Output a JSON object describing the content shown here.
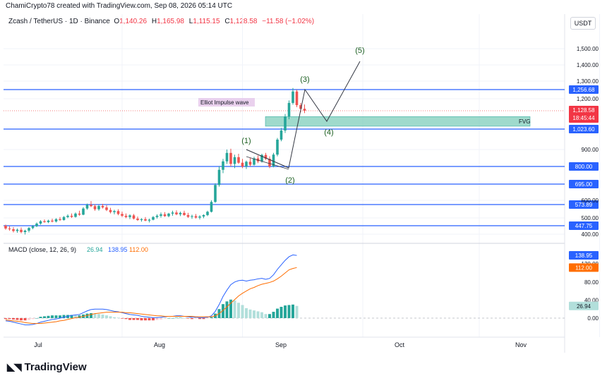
{
  "header": {
    "credit": "ChamiCrypto78 created with TradingView.com, Sep 08, 2026 05:14 UTC",
    "symbol": "Zcash / TetherUS · 1D · Binance",
    "open_label": "O",
    "open": "1,140.26",
    "high_label": "H",
    "high": "1,165.98",
    "low_label": "L",
    "low": "1,115.15",
    "close_label": "C",
    "close": "1,128.58",
    "change": "−11.58 (−1.02%)",
    "currency": "USDT"
  },
  "brand": {
    "name": "TradingView",
    "logo_icon": "tradingview-logo-icon"
  },
  "colors": {
    "up": "#26a69a",
    "down": "#ef5350",
    "level": "#2962ff",
    "fvg": "#7fcdbb",
    "macd": "#2962ff",
    "signal": "#ff6d00",
    "hist_up_strong": "#26a69a",
    "hist_up_weak": "#b2dfdb",
    "hist_down_strong": "#ef5350",
    "hist_down_weak": "#ffcdd2"
  },
  "chart_data": {
    "type": "candlestick",
    "price_axis": {
      "ticks": [
        400,
        500,
        600,
        900,
        1200,
        1300,
        1400,
        1500
      ],
      "tick_labels": [
        "400.00",
        "500.00",
        "600.00",
        "900.00",
        "1,200.00",
        "1,300.00",
        "1,400.00",
        "1,500.00"
      ]
    },
    "time_axis": {
      "labels": [
        "Jul",
        "Aug",
        "Sep",
        "Oct",
        "Nov"
      ],
      "dates": [
        "2026-07-01",
        "2026-08-01",
        "2026-09-01",
        "2026-10-01",
        "2026-11-01"
      ]
    },
    "horizontal_levels": [
      {
        "value": 1256.68,
        "label": "1,256.68"
      },
      {
        "value": 1023.6,
        "label": "1,023.60"
      },
      {
        "value": 800,
        "label": "800.00"
      },
      {
        "value": 695,
        "label": "695.00"
      },
      {
        "value": 573.89,
        "label": "573.89"
      },
      {
        "value": 447.75,
        "label": "447.75"
      }
    ],
    "last_price": {
      "value": 1128.58,
      "label": "1,128.58",
      "countdown": "18:45:44"
    },
    "fvg_zone": {
      "label": "FVG",
      "top": 1095,
      "bottom": 1040,
      "start": "2026-08-25",
      "end": "2026-10-31"
    },
    "annotation_text": "Elliot Impulse wave",
    "wave_labels": [
      {
        "label": "(1)",
        "date": "2026-08-21",
        "price": 915
      },
      {
        "label": "(2)",
        "date": "2026-08-31",
        "price": 780
      },
      {
        "label": "(3)",
        "date": "2026-09-06",
        "price": 1256
      },
      {
        "label": "(4)",
        "date": "2026-09-10",
        "price": 1070
      },
      {
        "label": "(5)",
        "date": "2026-09-19",
        "price": 1420
      }
    ],
    "wave_path": [
      {
        "date": "2026-08-21",
        "price": 900
      },
      {
        "date": "2026-08-31",
        "price": 790
      },
      {
        "date": "2026-09-06",
        "price": 1256
      },
      {
        "date": "2026-09-10",
        "price": 1070
      },
      {
        "date": "2026-09-19",
        "price": 1420
      }
    ],
    "candles": [
      {
        "d": "2026-06-01",
        "o": 448,
        "h": 455,
        "l": 425,
        "c": 432
      },
      {
        "d": "2026-06-02",
        "o": 432,
        "h": 445,
        "l": 420,
        "c": 428
      },
      {
        "d": "2026-06-03",
        "o": 428,
        "h": 440,
        "l": 410,
        "c": 418
      },
      {
        "d": "2026-06-04",
        "o": 418,
        "h": 432,
        "l": 408,
        "c": 425
      },
      {
        "d": "2026-06-05",
        "o": 425,
        "h": 438,
        "l": 405,
        "c": 412
      },
      {
        "d": "2026-06-06",
        "o": 412,
        "h": 425,
        "l": 398,
        "c": 420
      },
      {
        "d": "2026-06-07",
        "o": 420,
        "h": 440,
        "l": 410,
        "c": 435
      },
      {
        "d": "2026-06-08",
        "o": 435,
        "h": 452,
        "l": 428,
        "c": 445
      },
      {
        "d": "2026-06-09",
        "o": 445,
        "h": 470,
        "l": 440,
        "c": 462
      },
      {
        "d": "2026-06-10",
        "o": 462,
        "h": 485,
        "l": 455,
        "c": 478
      },
      {
        "d": "2026-06-11",
        "o": 478,
        "h": 490,
        "l": 468,
        "c": 472
      },
      {
        "d": "2026-06-12",
        "o": 472,
        "h": 488,
        "l": 465,
        "c": 482
      },
      {
        "d": "2026-06-13",
        "o": 482,
        "h": 495,
        "l": 470,
        "c": 476
      },
      {
        "d": "2026-06-14",
        "o": 476,
        "h": 498,
        "l": 470,
        "c": 492
      },
      {
        "d": "2026-06-15",
        "o": 492,
        "h": 505,
        "l": 480,
        "c": 486
      },
      {
        "d": "2026-06-16",
        "o": 486,
        "h": 510,
        "l": 482,
        "c": 505
      },
      {
        "d": "2026-06-17",
        "o": 505,
        "h": 520,
        "l": 498,
        "c": 512
      },
      {
        "d": "2026-06-18",
        "o": 512,
        "h": 525,
        "l": 500,
        "c": 506
      },
      {
        "d": "2026-06-19",
        "o": 506,
        "h": 530,
        "l": 502,
        "c": 524
      },
      {
        "d": "2026-06-20",
        "o": 524,
        "h": 540,
        "l": 512,
        "c": 518
      },
      {
        "d": "2026-06-21",
        "o": 518,
        "h": 560,
        "l": 515,
        "c": 552
      },
      {
        "d": "2026-06-22",
        "o": 552,
        "h": 580,
        "l": 545,
        "c": 572
      },
      {
        "d": "2026-06-23",
        "o": 572,
        "h": 595,
        "l": 560,
        "c": 565
      },
      {
        "d": "2026-06-24",
        "o": 565,
        "h": 575,
        "l": 540,
        "c": 548
      },
      {
        "d": "2026-06-25",
        "o": 548,
        "h": 572,
        "l": 540,
        "c": 566
      },
      {
        "d": "2026-06-26",
        "o": 566,
        "h": 578,
        "l": 552,
        "c": 558
      },
      {
        "d": "2026-06-27",
        "o": 558,
        "h": 570,
        "l": 538,
        "c": 544
      },
      {
        "d": "2026-06-28",
        "o": 544,
        "h": 556,
        "l": 525,
        "c": 532
      },
      {
        "d": "2026-06-29",
        "o": 532,
        "h": 545,
        "l": 520,
        "c": 538
      },
      {
        "d": "2026-06-30",
        "o": 538,
        "h": 548,
        "l": 515,
        "c": 522
      },
      {
        "d": "2026-07-01",
        "o": 522,
        "h": 535,
        "l": 505,
        "c": 512
      },
      {
        "d": "2026-07-02",
        "o": 512,
        "h": 525,
        "l": 498,
        "c": 505
      },
      {
        "d": "2026-07-03",
        "o": 505,
        "h": 520,
        "l": 492,
        "c": 514
      },
      {
        "d": "2026-07-04",
        "o": 514,
        "h": 522,
        "l": 490,
        "c": 496
      },
      {
        "d": "2026-07-05",
        "o": 496,
        "h": 508,
        "l": 480,
        "c": 486
      },
      {
        "d": "2026-07-06",
        "o": 486,
        "h": 498,
        "l": 475,
        "c": 492
      },
      {
        "d": "2026-07-07",
        "o": 492,
        "h": 505,
        "l": 478,
        "c": 482
      },
      {
        "d": "2026-07-08",
        "o": 482,
        "h": 495,
        "l": 470,
        "c": 488
      },
      {
        "d": "2026-07-09",
        "o": 488,
        "h": 510,
        "l": 484,
        "c": 505
      },
      {
        "d": "2026-07-10",
        "o": 505,
        "h": 520,
        "l": 496,
        "c": 512
      },
      {
        "d": "2026-07-11",
        "o": 512,
        "h": 530,
        "l": 502,
        "c": 520
      },
      {
        "d": "2026-07-12",
        "o": 520,
        "h": 532,
        "l": 506,
        "c": 510
      },
      {
        "d": "2026-07-13",
        "o": 510,
        "h": 528,
        "l": 504,
        "c": 524
      },
      {
        "d": "2026-07-14",
        "o": 524,
        "h": 540,
        "l": 512,
        "c": 530
      },
      {
        "d": "2026-07-15",
        "o": 530,
        "h": 542,
        "l": 515,
        "c": 520
      },
      {
        "d": "2026-07-16",
        "o": 520,
        "h": 535,
        "l": 510,
        "c": 528
      },
      {
        "d": "2026-07-17",
        "o": 528,
        "h": 540,
        "l": 512,
        "c": 516
      },
      {
        "d": "2026-07-18",
        "o": 516,
        "h": 528,
        "l": 500,
        "c": 506
      },
      {
        "d": "2026-07-19",
        "o": 506,
        "h": 518,
        "l": 494,
        "c": 510
      },
      {
        "d": "2026-07-20",
        "o": 510,
        "h": 522,
        "l": 496,
        "c": 502
      },
      {
        "d": "2026-07-21",
        "o": 502,
        "h": 515,
        "l": 490,
        "c": 508
      },
      {
        "d": "2026-07-22",
        "o": 508,
        "h": 520,
        "l": 498,
        "c": 516
      },
      {
        "d": "2026-07-23",
        "o": 516,
        "h": 540,
        "l": 510,
        "c": 534
      },
      {
        "d": "2026-07-24",
        "o": 534,
        "h": 600,
        "l": 530,
        "c": 590
      },
      {
        "d": "2026-07-25",
        "o": 590,
        "h": 700,
        "l": 585,
        "c": 690
      },
      {
        "d": "2026-07-26",
        "o": 690,
        "h": 800,
        "l": 680,
        "c": 780
      },
      {
        "d": "2026-07-27",
        "o": 780,
        "h": 845,
        "l": 760,
        "c": 830
      },
      {
        "d": "2026-07-28",
        "o": 830,
        "h": 900,
        "l": 815,
        "c": 880
      },
      {
        "d": "2026-07-29",
        "o": 880,
        "h": 905,
        "l": 800,
        "c": 815
      },
      {
        "d": "2026-07-30",
        "o": 815,
        "h": 870,
        "l": 790,
        "c": 855
      },
      {
        "d": "2026-07-31",
        "o": 855,
        "h": 875,
        "l": 815,
        "c": 822
      },
      {
        "d": "2026-08-01",
        "o": 822,
        "h": 845,
        "l": 790,
        "c": 800
      },
      {
        "d": "2026-08-02",
        "o": 800,
        "h": 835,
        "l": 785,
        "c": 828
      },
      {
        "d": "2026-08-03",
        "o": 828,
        "h": 850,
        "l": 800,
        "c": 810
      },
      {
        "d": "2026-08-04",
        "o": 810,
        "h": 858,
        "l": 805,
        "c": 848
      },
      {
        "d": "2026-08-05",
        "o": 848,
        "h": 865,
        "l": 820,
        "c": 830
      },
      {
        "d": "2026-08-06",
        "o": 830,
        "h": 875,
        "l": 822,
        "c": 868
      },
      {
        "d": "2026-08-07",
        "o": 868,
        "h": 880,
        "l": 838,
        "c": 845
      },
      {
        "d": "2026-08-08",
        "o": 845,
        "h": 860,
        "l": 790,
        "c": 800
      },
      {
        "d": "2026-08-09",
        "o": 800,
        "h": 880,
        "l": 795,
        "c": 870
      },
      {
        "d": "2026-08-10",
        "o": 870,
        "h": 970,
        "l": 860,
        "c": 960
      },
      {
        "d": "2026-08-11",
        "o": 960,
        "h": 1030,
        "l": 950,
        "c": 1015
      },
      {
        "d": "2026-08-12",
        "o": 1015,
        "h": 1110,
        "l": 1000,
        "c": 1095
      },
      {
        "d": "2026-08-13",
        "o": 1095,
        "h": 1190,
        "l": 1080,
        "c": 1175
      },
      {
        "d": "2026-08-14",
        "o": 1175,
        "h": 1265,
        "l": 1165,
        "c": 1245
      },
      {
        "d": "2026-08-15",
        "o": 1245,
        "h": 1256,
        "l": 1150,
        "c": 1162
      },
      {
        "d": "2026-08-16",
        "o": 1162,
        "h": 1175,
        "l": 1120,
        "c": 1140
      },
      {
        "d": "2026-08-17",
        "o": 1140.26,
        "h": 1165.98,
        "l": 1115.15,
        "c": 1128.58
      }
    ],
    "macd": {
      "name": "MACD (close, 12, 26, 9)",
      "values": {
        "histogram": "26.94",
        "macd": "138.95",
        "signal": "112.00"
      },
      "axis_ticks": [
        0,
        40,
        80,
        120
      ],
      "axis_labels": [
        "0.00",
        "40.00",
        "80.00",
        "120.00"
      ],
      "macd_line": [
        -6,
        -7,
        -9,
        -11,
        -13,
        -15,
        -15,
        -14,
        -12,
        -9,
        -7,
        -5,
        -3,
        -2,
        0,
        2,
        4,
        6,
        7,
        8,
        12,
        16,
        19,
        20,
        20,
        20,
        19,
        17,
        15,
        14,
        12,
        10,
        8,
        7,
        6,
        4,
        3,
        2,
        1,
        1,
        2,
        3,
        4,
        4,
        5,
        5,
        4,
        3,
        2,
        2,
        1,
        1,
        2,
        5,
        15,
        30,
        48,
        62,
        74,
        80,
        83,
        84,
        82,
        84,
        85,
        87,
        88,
        86,
        88,
        96,
        108,
        118,
        128,
        136,
        140,
        138.95
      ],
      "signal_line": [
        -4,
        -5,
        -6,
        -7,
        -8,
        -10,
        -11,
        -12,
        -12,
        -12,
        -11,
        -10,
        -9,
        -8,
        -6,
        -5,
        -3,
        -1,
        1,
        2,
        4,
        6,
        8,
        10,
        11,
        12,
        13,
        13,
        13,
        13,
        13,
        12,
        12,
        11,
        10,
        9,
        8,
        7,
        6,
        5,
        5,
        4,
        4,
        4,
        4,
        4,
        4,
        4,
        4,
        3,
        3,
        3,
        3,
        3,
        5,
        10,
        17,
        25,
        33,
        41,
        49,
        55,
        60,
        65,
        68,
        72,
        75,
        77,
        79,
        82,
        87,
        93,
        100,
        107,
        110,
        112
      ],
      "histogram": [
        -2,
        -2,
        -3,
        -4,
        -5,
        -5,
        -4,
        -2,
        0,
        3,
        4,
        5,
        6,
        6,
        6,
        7,
        7,
        7,
        6,
        6,
        8,
        10,
        11,
        10,
        9,
        8,
        6,
        4,
        2,
        1,
        -1,
        -2,
        -4,
        -4,
        -4,
        -5,
        -5,
        -5,
        -5,
        -4,
        -3,
        -1,
        0,
        0,
        1,
        1,
        0,
        -1,
        -2,
        -1,
        -2,
        -2,
        -1,
        2,
        10,
        20,
        31,
        37,
        41,
        39,
        34,
        29,
        22,
        19,
        17,
        15,
        13,
        9,
        9,
        14,
        21,
        25,
        28,
        29,
        30,
        26.94
      ]
    }
  }
}
